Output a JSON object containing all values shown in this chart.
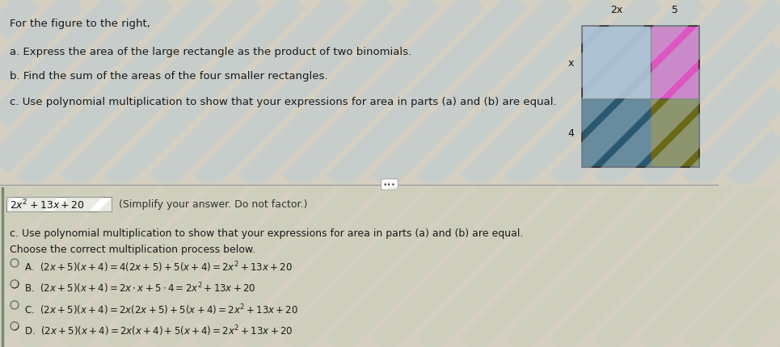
{
  "top_bg_color": "#cdd8e0",
  "bottom_bg_color": "#ddd8c8",
  "stripe_color_top": "#b8ccd8",
  "stripe_color_bottom": "#c8d4bc",
  "top_text_lines": [
    "For the figure to the right,",
    "a. Express the area of the large rectangle as the product of two binomials.",
    "b. Find the sum of the areas of the four smaller rectangles.",
    "c. Use polynomial multiplication to show that your expressions for area in parts (a) and (b) are equal."
  ],
  "rect_label_top_left": "2x",
  "rect_label_top_right": "5",
  "rect_label_left_top": "x",
  "rect_label_left_bottom": "4",
  "rect_colors": {
    "top_left": "#a8bcd0",
    "top_right": "#dd55c0",
    "bottom_left": "#2a5870",
    "bottom_right": "#6b6818"
  },
  "answer_text": "$2x^2+13x+20$",
  "answer_suffix": " (Simplify your answer. Do not factor.)",
  "bottom_c_label": "c. Use polynomial multiplication to show that your expressions for area in parts (a) and (b) are equal.",
  "choose_text": "Choose the correct multiplication process below.",
  "opt_A": "(2x+5)(x+4)=4(2x+5)+5(x+4)=2x",
  "opt_B": "(2x+5)(x+4)=2x·x+5·4=2x",
  "opt_C": "(2x+5)(x+4)=2x(2x+5)+5(x+4)=2x",
  "opt_D": "(2x+5)(x+4)=2x(x+4)+5(x+4)=2x"
}
